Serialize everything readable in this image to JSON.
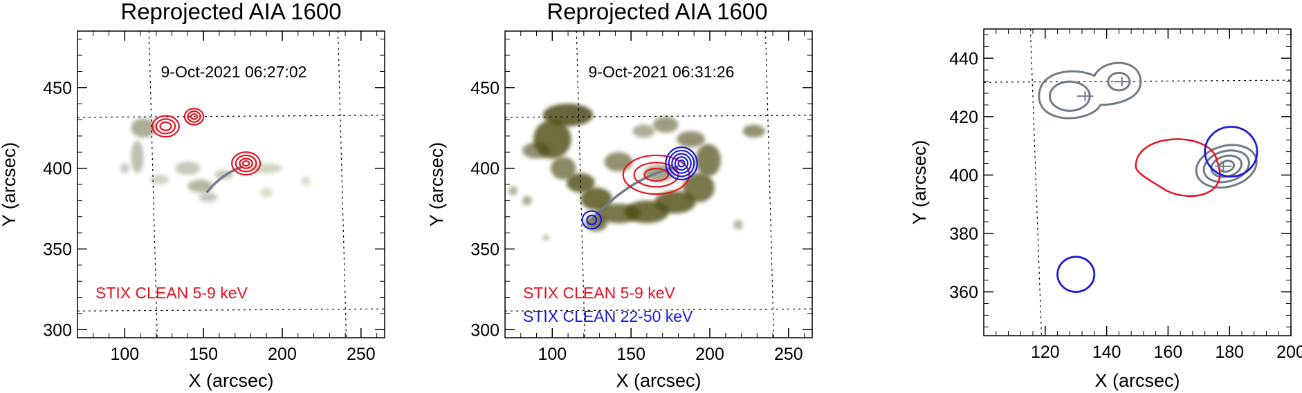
{
  "chart_data": [
    {
      "type": "contour-image",
      "title": "Reprojected AIA 1600",
      "timestamp": "9-Oct-2021 06:27:02",
      "xlabel": "X (arcsec)",
      "ylabel": "Y (arcsec)",
      "xlim": [
        70,
        265
      ],
      "ylim": [
        295,
        485
      ],
      "x_ticks": [
        "100",
        "150",
        "200",
        "250"
      ],
      "y_ticks": [
        "300",
        "350",
        "400",
        "450"
      ],
      "grid_lines": {
        "x": [
          118,
          238
        ],
        "y": [
          432,
          312
        ]
      },
      "legend": [
        {
          "name": "STIX CLEAN 5-9 keV",
          "color": "#e8121e"
        }
      ],
      "image_blobs": [
        {
          "x": 112,
          "y": 425,
          "rx": 8,
          "ry": 6,
          "o": 0.45
        },
        {
          "x": 108,
          "y": 407,
          "rx": 4,
          "ry": 10,
          "o": 0.35
        },
        {
          "x": 140,
          "y": 400,
          "rx": 8,
          "ry": 4,
          "o": 0.3
        },
        {
          "x": 163,
          "y": 396,
          "rx": 6,
          "ry": 3,
          "o": 0.3
        },
        {
          "x": 190,
          "y": 400,
          "rx": 10,
          "ry": 3,
          "o": 0.25
        },
        {
          "x": 148,
          "y": 389,
          "rx": 8,
          "ry": 4,
          "o": 0.4
        },
        {
          "x": 153,
          "y": 382,
          "rx": 6,
          "ry": 3,
          "o": 0.3
        },
        {
          "x": 122,
          "y": 393,
          "rx": 6,
          "ry": 3,
          "o": 0.25
        },
        {
          "x": 100,
          "y": 400,
          "rx": 3,
          "ry": 3,
          "o": 0.3
        },
        {
          "x": 190,
          "y": 385,
          "rx": 4,
          "ry": 3,
          "o": 0.2
        },
        {
          "x": 215,
          "y": 392,
          "rx": 3,
          "ry": 3,
          "o": 0.2
        }
      ],
      "loop": {
        "x": [
          152,
          162,
          175
        ],
        "y": [
          385,
          397,
          401
        ],
        "color": "#707a88"
      },
      "contours": [
        {
          "color": "#e8121e",
          "rx": [
            8.5,
            6,
            3.5
          ],
          "ry": [
            6.5,
            4.5,
            2.5
          ],
          "cx": 126,
          "cy": 426
        },
        {
          "color": "#e8121e",
          "rx": [
            6,
            4,
            2
          ],
          "ry": [
            5,
            3.3,
            1.6
          ],
          "cx": 144,
          "cy": 432
        },
        {
          "color": "#e8121e",
          "rx": [
            9,
            6.5,
            4,
            2
          ],
          "ry": [
            7,
            5,
            3,
            1.5
          ],
          "cx": 177,
          "cy": 403
        }
      ]
    },
    {
      "type": "contour-image",
      "title": "Reprojected AIA 1600",
      "timestamp": "9-Oct-2021 06:31:26",
      "xlabel": "X (arcsec)",
      "ylabel": "Y (arcsec)",
      "xlim": [
        70,
        265
      ],
      "ylim": [
        295,
        485
      ],
      "x_ticks": [
        "100",
        "150",
        "200",
        "250"
      ],
      "y_ticks": [
        "300",
        "350",
        "400",
        "450"
      ],
      "grid_lines": {
        "x": [
          118,
          238
        ],
        "y": [
          432,
          312
        ]
      },
      "legend": [
        {
          "name": "STIX CLEAN 5-9 keV",
          "color": "#e8121e"
        },
        {
          "name": "STIX CLEAN 22-50 keV",
          "color": "#1a1ad8"
        }
      ],
      "image_blobs": [
        {
          "x": 110,
          "y": 433,
          "rx": 16,
          "ry": 7,
          "o": 0.85
        },
        {
          "x": 100,
          "y": 418,
          "rx": 12,
          "ry": 12,
          "o": 0.8
        },
        {
          "x": 90,
          "y": 411,
          "rx": 9,
          "ry": 5,
          "o": 0.6
        },
        {
          "x": 107,
          "y": 400,
          "rx": 8,
          "ry": 7,
          "o": 0.65
        },
        {
          "x": 118,
          "y": 391,
          "rx": 9,
          "ry": 6,
          "o": 0.8
        },
        {
          "x": 128,
          "y": 381,
          "rx": 10,
          "ry": 7,
          "o": 0.8
        },
        {
          "x": 142,
          "y": 372,
          "rx": 14,
          "ry": 6,
          "o": 0.75
        },
        {
          "x": 160,
          "y": 373,
          "rx": 14,
          "ry": 7,
          "o": 0.8
        },
        {
          "x": 178,
          "y": 379,
          "rx": 13,
          "ry": 7,
          "o": 0.8
        },
        {
          "x": 193,
          "y": 388,
          "rx": 10,
          "ry": 9,
          "o": 0.75
        },
        {
          "x": 199,
          "y": 405,
          "rx": 8,
          "ry": 10,
          "o": 0.7
        },
        {
          "x": 188,
          "y": 418,
          "rx": 9,
          "ry": 5,
          "o": 0.6
        },
        {
          "x": 172,
          "y": 427,
          "rx": 8,
          "ry": 5,
          "o": 0.55
        },
        {
          "x": 158,
          "y": 423,
          "rx": 7,
          "ry": 4,
          "o": 0.45
        },
        {
          "x": 142,
          "y": 404,
          "rx": 9,
          "ry": 6,
          "o": 0.6
        },
        {
          "x": 128,
          "y": 366,
          "rx": 7,
          "ry": 5,
          "o": 0.7
        },
        {
          "x": 168,
          "y": 397,
          "rx": 10,
          "ry": 5,
          "o": 0.5
        },
        {
          "x": 228,
          "y": 423,
          "rx": 7,
          "ry": 4,
          "o": 0.6
        },
        {
          "x": 84,
          "y": 380,
          "rx": 3,
          "ry": 3,
          "o": 0.45
        },
        {
          "x": 218,
          "y": 365,
          "rx": 3,
          "ry": 3,
          "o": 0.4
        },
        {
          "x": 75,
          "y": 386,
          "rx": 3,
          "ry": 3,
          "o": 0.4
        },
        {
          "x": 96,
          "y": 357,
          "rx": 2,
          "ry": 2,
          "o": 0.35
        }
      ],
      "loop": {
        "x": [
          125,
          150,
          180
        ],
        "y": [
          368,
          395,
          401
        ],
        "color": "#707a88"
      },
      "contours": [
        {
          "color": "#e8121e",
          "rx": [
            21,
            14,
            7.5
          ],
          "ry": [
            12,
            7.5,
            3.8
          ],
          "cx": 166,
          "cy": 396
        },
        {
          "color": "#1a1ad8",
          "rx": [
            10,
            8,
            6,
            4,
            2
          ],
          "ry": [
            10,
            8,
            6,
            4,
            2
          ],
          "cx": 182,
          "cy": 403
        },
        {
          "color": "#1a1ad8",
          "rx": [
            6,
            3
          ],
          "ry": [
            5.5,
            2.8
          ],
          "cx": 125,
          "cy": 368
        }
      ]
    },
    {
      "type": "contour",
      "xlabel": "X (arcsec)",
      "ylabel": "Y (arcsec)",
      "xlim": [
        100,
        200
      ],
      "ylim": [
        345,
        450
      ],
      "x_ticks": [
        "120",
        "140",
        "160",
        "180",
        "200"
      ],
      "y_ticks": [
        "360",
        "380",
        "400",
        "420",
        "440"
      ],
      "grid_lines": {
        "x": [
          117
        ],
        "y": [
          432
        ]
      },
      "gray_double_source": {
        "cx1": 128,
        "cy1": 427,
        "cx2": 144,
        "cy2": 432,
        "color": "#707a88"
      },
      "gray_contours": {
        "cx": 179,
        "cy": 403,
        "rx": [
          10,
          7.5,
          5,
          2.5
        ],
        "ry": [
          7,
          5.2,
          3.5,
          1.8
        ],
        "color": "#707a88"
      },
      "red_contour": {
        "cx": 165,
        "cy": 403,
        "rx": 15.5,
        "ry": 12,
        "color": "#e8121e"
      },
      "blue_circles": [
        {
          "cx": 180.5,
          "cy": 408,
          "r": 8.5,
          "color": "#1a1ad8"
        },
        {
          "cx": 130,
          "cy": 366,
          "r": 6,
          "color": "#1a1ad8"
        }
      ],
      "crosses": [
        {
          "x": 133,
          "y": 427
        },
        {
          "x": 145,
          "y": 432
        },
        {
          "x": 178,
          "y": 403
        }
      ]
    }
  ]
}
